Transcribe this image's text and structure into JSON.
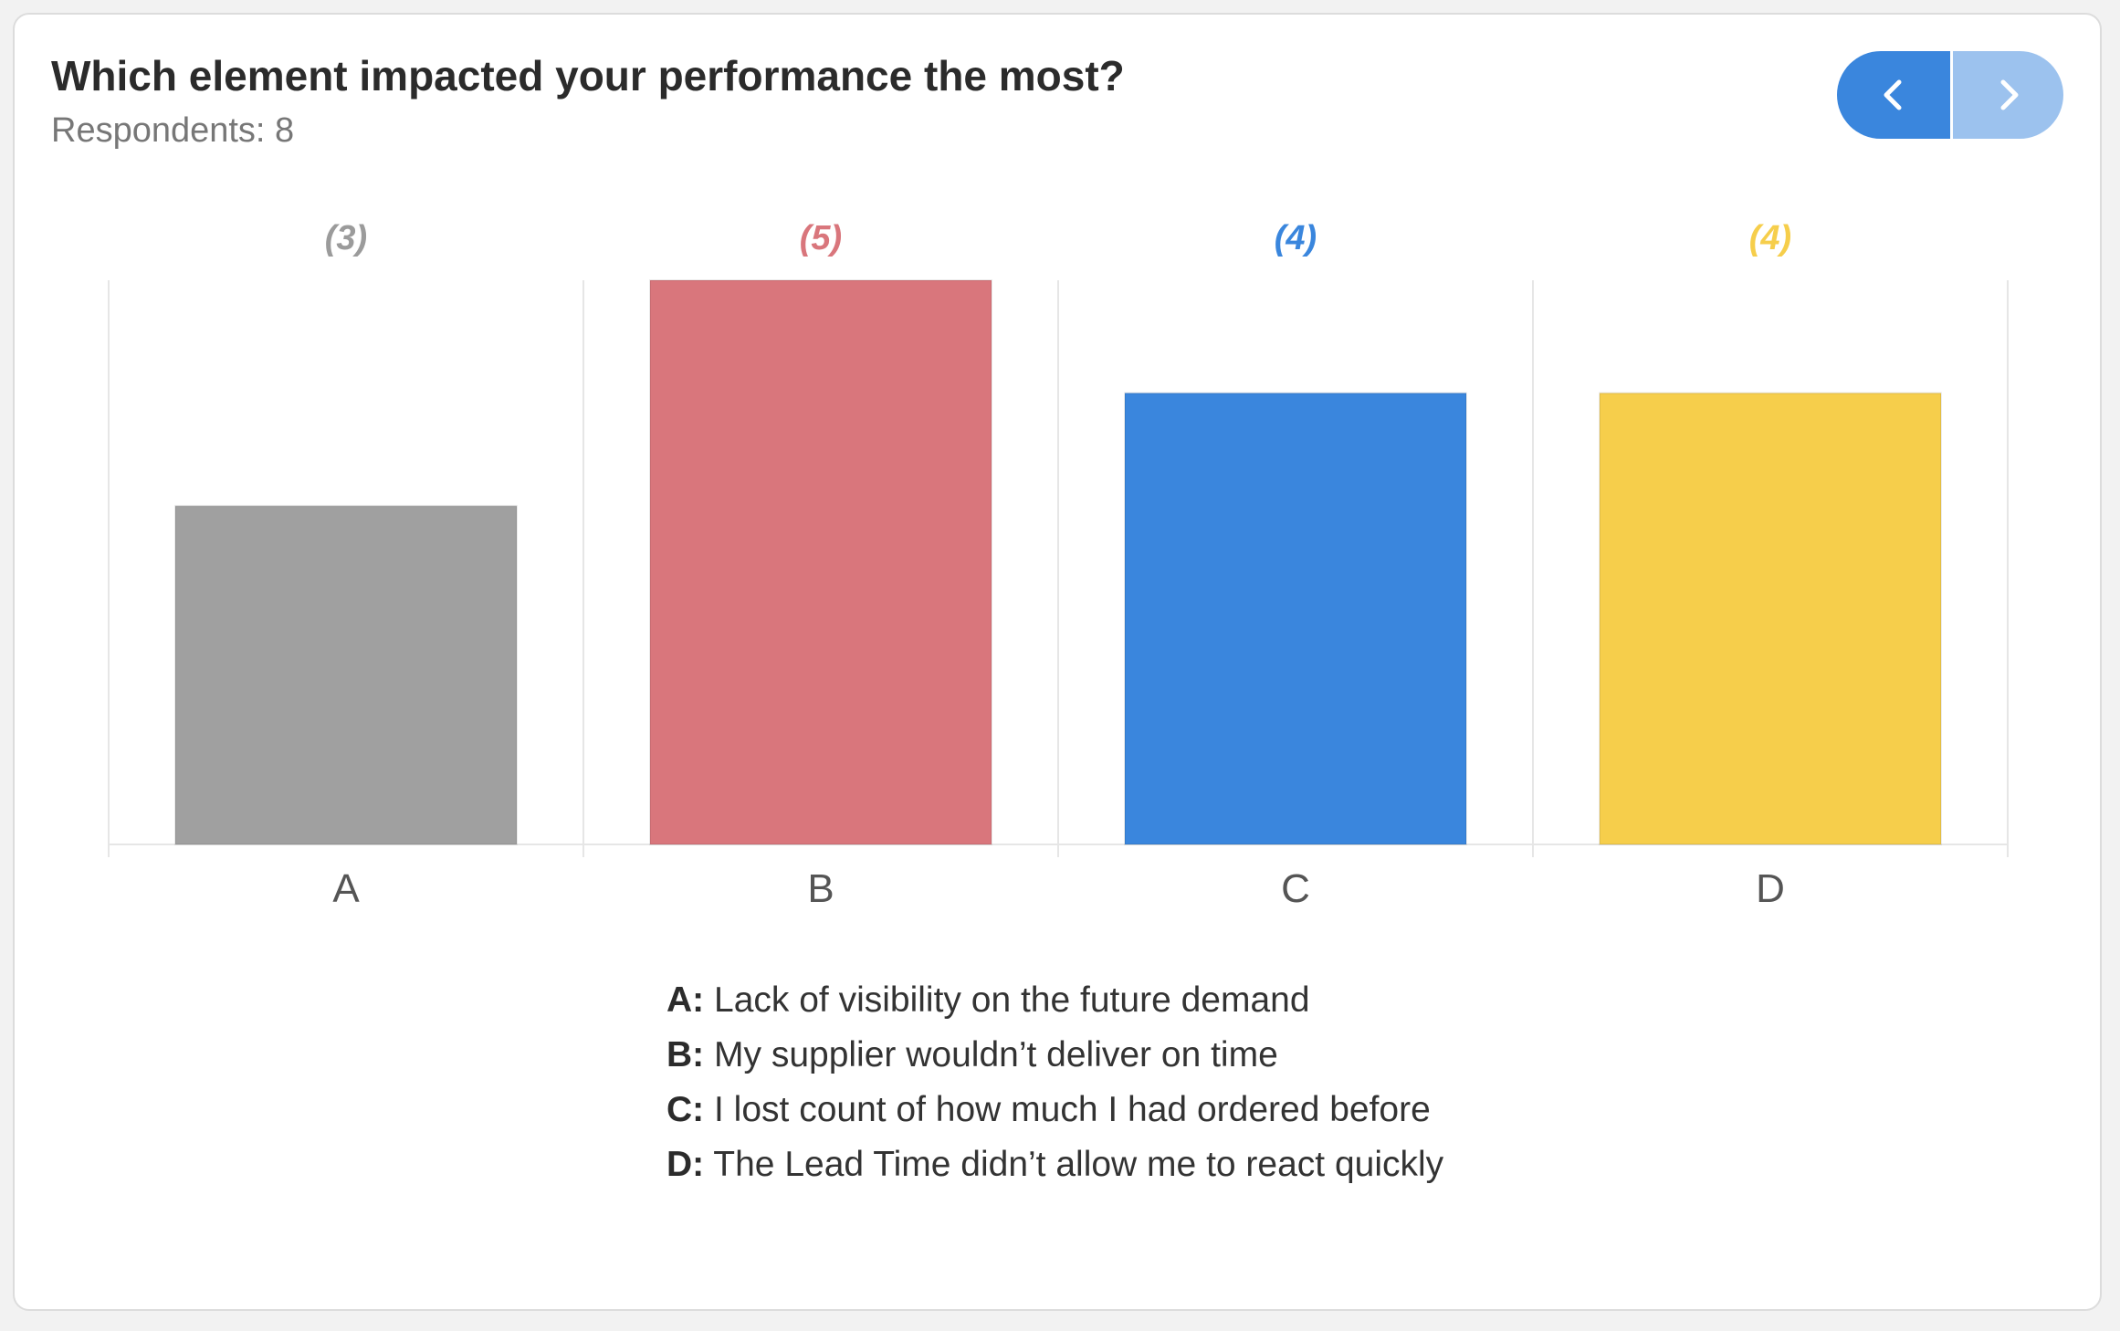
{
  "header": {
    "title": "Which element impacted your performance the most?",
    "respondents": "Respondents: 8"
  },
  "nav": {
    "prev_icon": "chevron-left-icon",
    "next_icon": "chevron-right-icon"
  },
  "colors": {
    "grid": "#e6e6e6",
    "axis_label": "#555555"
  },
  "chart_data": {
    "type": "bar",
    "categories": [
      "A",
      "B",
      "C",
      "D"
    ],
    "values": [
      3,
      5,
      4,
      4
    ],
    "value_labels": [
      "(3)",
      "(5)",
      "(4)",
      "(4)"
    ],
    "colors": [
      "#a0a0a0",
      "#d9767c",
      "#3a86dd",
      "#f6ce4b"
    ],
    "label_colors": [
      "#9b9b9b",
      "#d9767c",
      "#3a86dd",
      "#f6ce4b"
    ],
    "ylim": [
      0,
      5
    ],
    "grid": true
  },
  "legend": [
    {
      "key": "A:",
      "text": "Lack of visibility on the future demand"
    },
    {
      "key": "B:",
      "text": "My supplier wouldn’t deliver on time"
    },
    {
      "key": "C:",
      "text": "I lost count of how much I had ordered before"
    },
    {
      "key": "D:",
      "text": "The Lead Time didn’t allow me to react quickly"
    }
  ]
}
